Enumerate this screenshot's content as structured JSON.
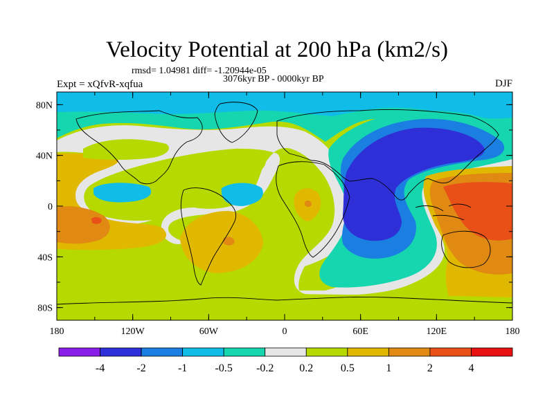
{
  "title": "Velocity Potential at 200 hPa (km2/s)",
  "stats": "rmsd= 1.04981 diff= -1.20944e-05",
  "period": "3076kyr BP - 0000kyr BP",
  "experiment": "Expt = xQfvR-xqfua",
  "season": "DJF",
  "map": {
    "lon_range": [
      -180,
      180
    ],
    "lat_range": [
      -90,
      90
    ],
    "lon_ticks": [
      {
        "value": -180,
        "label": "180"
      },
      {
        "value": -120,
        "label": "120W"
      },
      {
        "value": -60,
        "label": "60W"
      },
      {
        "value": 0,
        "label": "0"
      },
      {
        "value": 60,
        "label": "60E"
      },
      {
        "value": 120,
        "label": "120E"
      },
      {
        "value": 180,
        "label": "180"
      }
    ],
    "lat_ticks": [
      {
        "value": 80,
        "label": "80N"
      },
      {
        "value": 40,
        "label": "40N"
      },
      {
        "value": 0,
        "label": "0"
      },
      {
        "value": -40,
        "label": "40S"
      },
      {
        "value": -80,
        "label": "80S"
      }
    ]
  },
  "colorbar": {
    "colors": [
      "#8a1ee8",
      "#2f2fd8",
      "#1a7fe0",
      "#10bce8",
      "#16d6b0",
      "#e6e6e6",
      "#b6da00",
      "#e0b800",
      "#e08a14",
      "#e85018",
      "#e81010"
    ],
    "labels": [
      "-4",
      "-2",
      "-1",
      "-0.5",
      "-0.2",
      "0.2",
      "0.5",
      "1",
      "2",
      "4"
    ]
  },
  "colors": {
    "neg_strong": "#2f2fd8",
    "neg_mid": "#1a7fe0",
    "neg_weak": "#10bce8",
    "neg_faint": "#16d6b0",
    "neutral": "#e6e6e6",
    "pos_faint": "#b6da00",
    "pos_weak": "#e0b800",
    "pos_mid": "#e08a14",
    "pos_strong": "#e85018"
  }
}
